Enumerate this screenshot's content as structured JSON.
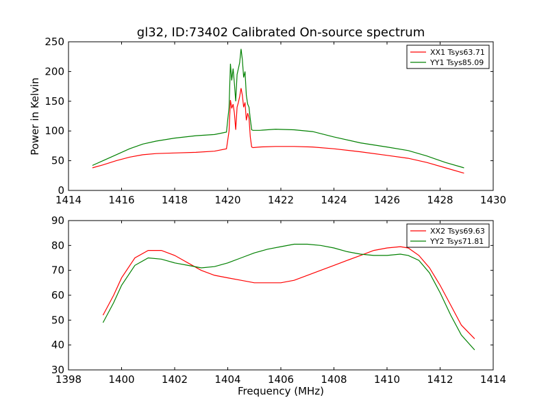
{
  "chart_data": [
    {
      "type": "line",
      "title": "gl32, ID:73402 Calibrated On-source spectrum",
      "xlabel": "",
      "ylabel": "Power in Kelvin",
      "xlim": [
        1414,
        1430
      ],
      "ylim": [
        0,
        250
      ],
      "xticks": [
        1414,
        1416,
        1418,
        1420,
        1422,
        1424,
        1426,
        1428,
        1430
      ],
      "yticks": [
        0,
        50,
        100,
        150,
        200,
        250
      ],
      "grid": false,
      "legend": "top-right",
      "series": [
        {
          "name": "XX1 Tsys63.71",
          "color": "#ff0000",
          "x": [
            1414.9,
            1415.3,
            1415.8,
            1416.3,
            1416.8,
            1417.3,
            1418.0,
            1418.8,
            1419.5,
            1419.95,
            1420.05,
            1420.1,
            1420.15,
            1420.2,
            1420.25,
            1420.3,
            1420.35,
            1420.4,
            1420.45,
            1420.5,
            1420.55,
            1420.6,
            1420.65,
            1420.7,
            1420.75,
            1420.8,
            1420.85,
            1420.9,
            1420.95,
            1421.2,
            1421.8,
            1422.5,
            1423.2,
            1424.0,
            1425.0,
            1426.0,
            1426.8,
            1427.5,
            1428.2,
            1428.9
          ],
          "y": [
            38,
            43,
            50,
            56,
            60,
            62,
            63,
            64,
            66,
            70,
            100,
            152,
            138,
            145,
            130,
            102,
            140,
            148,
            158,
            172,
            160,
            140,
            148,
            118,
            130,
            122,
            90,
            73,
            72,
            73,
            74,
            74,
            73,
            70,
            65,
            59,
            54,
            47,
            38,
            29
          ]
        },
        {
          "name": "YY1 Tsys85.09",
          "color": "#008000",
          "x": [
            1414.9,
            1415.3,
            1415.8,
            1416.3,
            1416.8,
            1417.3,
            1418.0,
            1418.8,
            1419.5,
            1419.95,
            1420.05,
            1420.1,
            1420.15,
            1420.2,
            1420.25,
            1420.3,
            1420.35,
            1420.4,
            1420.45,
            1420.5,
            1420.55,
            1420.6,
            1420.65,
            1420.7,
            1420.75,
            1420.8,
            1420.85,
            1420.9,
            1420.95,
            1421.2,
            1421.8,
            1422.5,
            1423.2,
            1424.0,
            1425.0,
            1426.0,
            1426.8,
            1427.5,
            1428.2,
            1428.9
          ],
          "y": [
            42,
            50,
            60,
            70,
            78,
            83,
            88,
            92,
            94,
            98,
            140,
            213,
            185,
            205,
            180,
            150,
            195,
            205,
            215,
            238,
            220,
            190,
            200,
            160,
            145,
            140,
            120,
            102,
            101,
            101,
            103,
            102,
            99,
            90,
            80,
            73,
            67,
            58,
            47,
            38
          ]
        }
      ]
    },
    {
      "type": "line",
      "title": "",
      "xlabel": "Frequency (MHz)",
      "ylabel": "",
      "xlim": [
        1398,
        1414
      ],
      "ylim": [
        30,
        90
      ],
      "xticks": [
        1398,
        1400,
        1402,
        1404,
        1406,
        1408,
        1410,
        1412,
        1414
      ],
      "yticks": [
        30,
        40,
        50,
        60,
        70,
        80,
        90
      ],
      "grid": false,
      "legend": "top-right",
      "series": [
        {
          "name": "XX2 Tsys69.63",
          "color": "#ff0000",
          "x": [
            1399.3,
            1399.7,
            1400.0,
            1400.5,
            1401.0,
            1401.5,
            1402.0,
            1402.5,
            1403.0,
            1403.5,
            1404.0,
            1404.5,
            1405.0,
            1405.5,
            1406.0,
            1406.5,
            1407.0,
            1407.5,
            1408.0,
            1408.5,
            1409.0,
            1409.5,
            1410.0,
            1410.5,
            1410.8,
            1411.2,
            1411.6,
            1412.0,
            1412.4,
            1412.8,
            1413.3
          ],
          "y": [
            52,
            60,
            67,
            75,
            78,
            78,
            76,
            73,
            70,
            68,
            67,
            66,
            65,
            65,
            65,
            66,
            68,
            70,
            72,
            74,
            76,
            78,
            79,
            79.5,
            79,
            76,
            71,
            64,
            56,
            48,
            42.5
          ]
        },
        {
          "name": "YY2 Tsys71.81",
          "color": "#008000",
          "x": [
            1399.3,
            1399.7,
            1400.0,
            1400.5,
            1401.0,
            1401.5,
            1402.0,
            1402.5,
            1403.0,
            1403.5,
            1404.0,
            1404.5,
            1405.0,
            1405.5,
            1406.0,
            1406.5,
            1407.0,
            1407.5,
            1408.0,
            1408.5,
            1409.0,
            1409.5,
            1410.0,
            1410.5,
            1410.8,
            1411.2,
            1411.6,
            1412.0,
            1412.4,
            1412.8,
            1413.3
          ],
          "y": [
            49,
            57,
            64,
            72,
            75,
            74.5,
            73,
            72,
            71,
            71.5,
            73,
            75,
            77,
            78.5,
            79.5,
            80.5,
            80.5,
            80,
            79,
            77.5,
            76.5,
            76,
            76,
            76.5,
            76,
            74,
            69,
            61,
            52,
            44,
            38
          ]
        }
      ]
    }
  ]
}
